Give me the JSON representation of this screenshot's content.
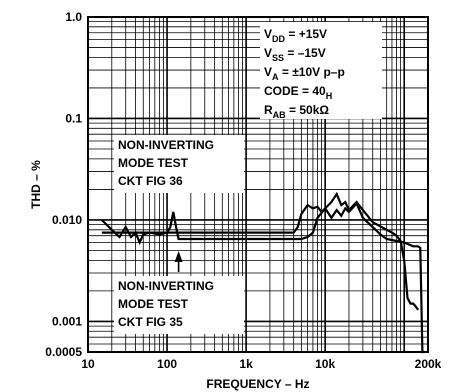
{
  "chart_data": {
    "type": "line",
    "xlabel": "FREQUENCY – Hz",
    "ylabel": "THD – %",
    "x_scale": "log",
    "y_scale": "log",
    "xlim": [
      10,
      200000
    ],
    "ylim": [
      0.0005,
      1.0
    ],
    "x_ticks": [
      {
        "value": 10,
        "label": "10"
      },
      {
        "value": 100,
        "label": "100"
      },
      {
        "value": 1000,
        "label": "1k"
      },
      {
        "value": 10000,
        "label": "10k"
      },
      {
        "value": 200000,
        "label": "200k"
      }
    ],
    "y_ticks": [
      {
        "value": 1.0,
        "label": "1.0"
      },
      {
        "value": 0.1,
        "label": "0.1"
      },
      {
        "value": 0.01,
        "label": "0.010"
      },
      {
        "value": 0.001,
        "label": "0.001"
      },
      {
        "value": 0.0005,
        "label": "0.0005"
      }
    ],
    "grid": true,
    "conditions": [
      {
        "main": "V",
        "sub": "DD",
        "rest": " = +15V"
      },
      {
        "main": "V",
        "sub": "SS",
        "rest": " = –15V"
      },
      {
        "main": "V",
        "sub": "A",
        "rest": " = ±10V p–p"
      },
      {
        "main": "CODE = 40",
        "sub": "H",
        "rest": ""
      },
      {
        "main": "R",
        "sub": "AB",
        "rest": " = 50kΩ"
      }
    ],
    "annotations": [
      {
        "lines": [
          "NON-INVERTING",
          "MODE TEST",
          "CKT FIG 36"
        ]
      },
      {
        "lines": [
          "NON-INVERTING",
          "MODE TEST",
          "CKT FIG 35"
        ]
      }
    ],
    "series": [
      {
        "x": [
          15,
          20,
          25,
          30,
          35,
          40,
          50,
          60,
          80,
          100,
          120,
          140,
          160,
          200,
          300,
          500,
          1000,
          2000,
          3000,
          4000,
          4500,
          5000,
          6000,
          7000,
          8000,
          9000,
          10000,
          12000,
          14000,
          16000,
          18000,
          20000,
          25000,
          30000,
          40000,
          60000,
          70000,
          80000,
          90000,
          100000,
          110000,
          120000,
          130000,
          140000,
          150000
        ],
        "y": [
          0.0075,
          0.0075,
          0.0075,
          0.0075,
          0.0075,
          0.0075,
          0.0075,
          0.0075,
          0.0072,
          0.0075,
          0.0075,
          0.0075,
          0.0075,
          0.0075,
          0.0075,
          0.0075,
          0.0075,
          0.0075,
          0.0075,
          0.0075,
          0.0085,
          0.0115,
          0.014,
          0.013,
          0.0135,
          0.012,
          0.013,
          0.015,
          0.018,
          0.014,
          0.015,
          0.0125,
          0.015,
          0.0125,
          0.0095,
          0.008,
          0.0075,
          0.007,
          0.0062,
          0.004,
          0.0017,
          0.0015,
          0.0015,
          0.0014,
          0.0013
        ]
      },
      {
        "x": [
          15,
          20,
          25,
          30,
          35,
          40,
          45,
          50,
          60,
          80,
          100,
          110,
          120,
          130,
          140,
          150,
          200,
          300,
          500,
          1000,
          2000,
          3000,
          4000,
          5000,
          6000,
          7000,
          8000,
          10000,
          12000,
          14000,
          16000,
          18000,
          20000,
          25000,
          30000,
          40000,
          50000,
          60000,
          80000,
          100000,
          130000,
          150000,
          160000,
          170000,
          180000
        ],
        "y": [
          0.01,
          0.008,
          0.0068,
          0.0085,
          0.0068,
          0.0075,
          0.006,
          0.0072,
          0.0075,
          0.0075,
          0.0075,
          0.0085,
          0.012,
          0.0085,
          0.0065,
          0.0065,
          0.0065,
          0.0065,
          0.0065,
          0.0065,
          0.0065,
          0.0065,
          0.0065,
          0.0065,
          0.0068,
          0.0075,
          0.0105,
          0.013,
          0.0105,
          0.0125,
          0.011,
          0.013,
          0.012,
          0.0145,
          0.0105,
          0.0085,
          0.0072,
          0.0065,
          0.0062,
          0.006,
          0.0055,
          0.0055,
          0.0053,
          0.0005,
          0.0005
        ]
      }
    ]
  }
}
